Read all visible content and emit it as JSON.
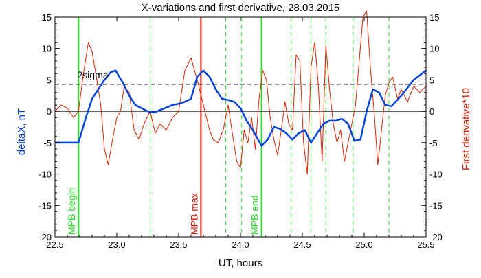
{
  "chart_data": {
    "type": "line",
    "title": "X-variations and first derivative, 28.03.2015",
    "xlabel": "UT, hours",
    "ylabel_left": "deltaX, nT",
    "ylabel_right": "First derivative*10",
    "xlim": [
      22.5,
      25.5
    ],
    "ylim": [
      -20,
      15
    ],
    "ylim_right": [
      -20,
      15
    ],
    "x_ticks": [
      "22.5",
      "23.0",
      "23.5",
      "24.0",
      "24.5",
      "25.0",
      "25.5"
    ],
    "y_ticks": [
      "15",
      "10",
      "5",
      "0",
      "-5",
      "-10",
      "-15",
      "-20"
    ],
    "y_ticks_right": [
      "15",
      "10",
      "5",
      "0",
      "-5",
      "-10",
      "-15",
      "-20"
    ],
    "grid": false,
    "colors": {
      "deltaX": "#0044dd",
      "derivative": "#dd2200",
      "mpb_marker": "#22dd22",
      "mpb_max": "#dd1100",
      "reference": "#000000"
    },
    "reference_lines": [
      {
        "label": "2sigma",
        "y": 4.3,
        "style": "dashed"
      },
      {
        "label": "",
        "y": 0,
        "style": "solid"
      }
    ],
    "vertical_markers": [
      {
        "x": 22.69,
        "label": "MPB begin",
        "style": "solid",
        "color": "#22dd22"
      },
      {
        "x": 23.68,
        "label": "MPB max",
        "style": "solid",
        "color": "#dd1100"
      },
      {
        "x": 24.17,
        "label": "MPB end",
        "style": "solid",
        "color": "#22dd22"
      },
      {
        "x": 23.27,
        "label": "",
        "style": "dashed",
        "color": "#22dd22"
      },
      {
        "x": 23.88,
        "label": "",
        "style": "dashed",
        "color": "#22dd22"
      },
      {
        "x": 24.01,
        "label": "",
        "style": "dashed",
        "color": "#22dd22"
      },
      {
        "x": 24.41,
        "label": "",
        "style": "dashed",
        "color": "#22dd22"
      },
      {
        "x": 24.57,
        "label": "",
        "style": "dashed",
        "color": "#22dd22"
      },
      {
        "x": 24.69,
        "label": "",
        "style": "dashed",
        "color": "#22dd22"
      },
      {
        "x": 24.91,
        "label": "",
        "style": "dashed",
        "color": "#22dd22"
      },
      {
        "x": 25.2,
        "label": "",
        "style": "dashed",
        "color": "#22dd22"
      }
    ],
    "series": [
      {
        "axis": "left",
        "x": [
          22.5,
          22.6,
          22.69,
          22.75,
          22.8,
          22.85,
          22.9,
          22.95,
          22.99,
          23.05,
          23.1,
          23.15,
          23.2,
          23.25,
          23.3,
          23.35,
          23.4,
          23.45,
          23.5,
          23.55,
          23.6,
          23.65,
          23.7,
          23.75,
          23.8,
          23.85,
          23.9,
          23.95,
          24.0,
          24.05,
          24.1,
          24.17,
          24.22,
          24.27,
          24.32,
          24.37,
          24.42,
          24.47,
          24.52,
          24.57,
          24.62,
          24.67,
          24.72,
          24.77,
          24.82,
          24.87,
          24.92,
          24.97,
          25.02,
          25.07,
          25.12,
          25.17,
          25.22,
          25.3,
          25.4,
          25.5
        ],
        "values": [
          -5.0,
          -5.0,
          -5.0,
          -1.0,
          2.0,
          3.5,
          5.0,
          6.2,
          6.5,
          4.5,
          2.5,
          1.0,
          0.5,
          0.0,
          -0.2,
          0.2,
          0.6,
          1.0,
          1.2,
          1.5,
          2.0,
          5.5,
          6.5,
          5.5,
          3.5,
          2.0,
          1.8,
          1.5,
          0.5,
          -1.5,
          -3.0,
          -5.5,
          -4.5,
          -2.5,
          -2.8,
          -3.5,
          -4.5,
          -3.5,
          -3.0,
          -5.0,
          -3.5,
          -2.0,
          -1.5,
          -1.5,
          -1.2,
          -2.0,
          -4.7,
          -4.5,
          0.0,
          3.5,
          3.0,
          1.0,
          0.8,
          2.5,
          5.0,
          6.5
        ]
      },
      {
        "axis": "right",
        "x": [
          22.5,
          22.55,
          22.6,
          22.65,
          22.69,
          22.73,
          22.77,
          22.8,
          22.83,
          22.87,
          22.9,
          22.93,
          22.97,
          23.0,
          23.03,
          23.06,
          23.1,
          23.14,
          23.18,
          23.22,
          23.27,
          23.31,
          23.35,
          23.4,
          23.45,
          23.5,
          23.55,
          23.6,
          23.65,
          23.7,
          23.75,
          23.78,
          23.82,
          23.86,
          23.9,
          23.93,
          23.97,
          24.0,
          24.03,
          24.06,
          24.09,
          24.12,
          24.15,
          24.18,
          24.21,
          24.24,
          24.27,
          24.3,
          24.33,
          24.36,
          24.39,
          24.42,
          24.45,
          24.48,
          24.51,
          24.54,
          24.57,
          24.6,
          24.63,
          24.66,
          24.69,
          24.72,
          24.75,
          24.78,
          24.81,
          24.84,
          24.87,
          24.9,
          24.93,
          24.96,
          24.99,
          25.02,
          25.05,
          25.08,
          25.11,
          25.14,
          25.17,
          25.2,
          25.23,
          25.27,
          25.3,
          25.35,
          25.4,
          25.45,
          25.5
        ],
        "values": [
          0.0,
          1.0,
          0.5,
          -1.0,
          0.0,
          6.0,
          11.0,
          9.5,
          6.0,
          1.0,
          -6.0,
          -8.5,
          -4.0,
          -1.0,
          0.0,
          4.0,
          3.0,
          -3.0,
          -4.5,
          -2.0,
          0.0,
          -3.5,
          -2.0,
          -3.0,
          -1.0,
          0.0,
          6.5,
          8.5,
          5.0,
          1.0,
          -3.0,
          -4.5,
          -5.0,
          -3.0,
          1.0,
          -3.0,
          -8.0,
          -9.0,
          -3.0,
          -5.0,
          -1.0,
          -6.0,
          2.0,
          6.5,
          5.0,
          -1.0,
          -4.5,
          -7.0,
          -3.0,
          1.5,
          -2.0,
          -3.0,
          9.0,
          8.0,
          -5.0,
          -10.0,
          7.0,
          11.0,
          4.0,
          -8.0,
          10.5,
          3.5,
          -2.0,
          -5.0,
          -3.0,
          -8.0,
          -5.0,
          -2.0,
          1.0,
          8.0,
          15.0,
          16.0,
          7.0,
          0.0,
          -8.5,
          -3.0,
          2.5,
          4.5,
          5.5,
          2.0,
          3.5,
          1.5,
          4.0,
          3.0,
          4.0
        ]
      }
    ]
  }
}
